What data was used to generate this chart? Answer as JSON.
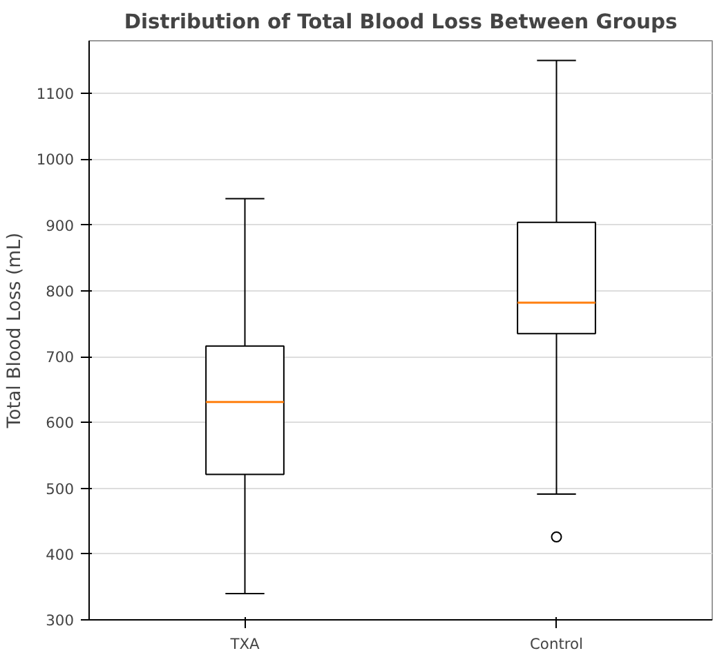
{
  "chart_data": {
    "type": "box",
    "title": "Distribution of Total Blood Loss Between Groups",
    "ylabel": "Total Blood Loss (mL)",
    "categories": [
      "TXA",
      "Control"
    ],
    "boxes": [
      {
        "low": 340,
        "q1": 521,
        "median": 631,
        "q3": 716,
        "high": 940
      },
      {
        "low": 491,
        "q1": 735,
        "median": 782,
        "q3": 904,
        "high": 1150,
        "outliers": [
          426
        ]
      }
    ],
    "ylim": [
      300,
      1180
    ],
    "yticks": [
      300,
      400,
      500,
      600,
      700,
      800,
      900,
      1000,
      1100
    ],
    "grid": "y"
  }
}
